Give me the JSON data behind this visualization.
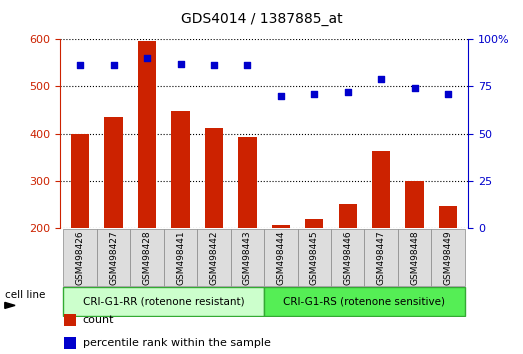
{
  "title": "GDS4014 / 1387885_at",
  "samples": [
    "GSM498426",
    "GSM498427",
    "GSM498428",
    "GSM498441",
    "GSM498442",
    "GSM498443",
    "GSM498444",
    "GSM498445",
    "GSM498446",
    "GSM498447",
    "GSM498448",
    "GSM498449"
  ],
  "bar_values": [
    400,
    435,
    596,
    447,
    412,
    392,
    208,
    220,
    252,
    364,
    300,
    247
  ],
  "percentile_values": [
    86,
    86,
    90,
    87,
    86,
    86,
    70,
    71,
    72,
    79,
    74,
    71
  ],
  "bar_color": "#cc2200",
  "percentile_color": "#0000cc",
  "ylim_left": [
    200,
    600
  ],
  "ylim_right": [
    0,
    100
  ],
  "yticks_left": [
    200,
    300,
    400,
    500,
    600
  ],
  "yticks_right": [
    0,
    25,
    50,
    75,
    100
  ],
  "group1_label": "CRI-G1-RR (rotenone resistant)",
  "group2_label": "CRI-G1-RS (rotenone sensitive)",
  "group1_color": "#ccffcc",
  "group2_color": "#55ee55",
  "cell_line_label": "cell line",
  "legend_count_label": "count",
  "legend_percentile_label": "percentile rank within the sample",
  "background_color": "#ffffff",
  "plot_bg_color": "#ffffff",
  "group1_indices": [
    0,
    1,
    2,
    3,
    4,
    5
  ],
  "group2_indices": [
    6,
    7,
    8,
    9,
    10,
    11
  ]
}
